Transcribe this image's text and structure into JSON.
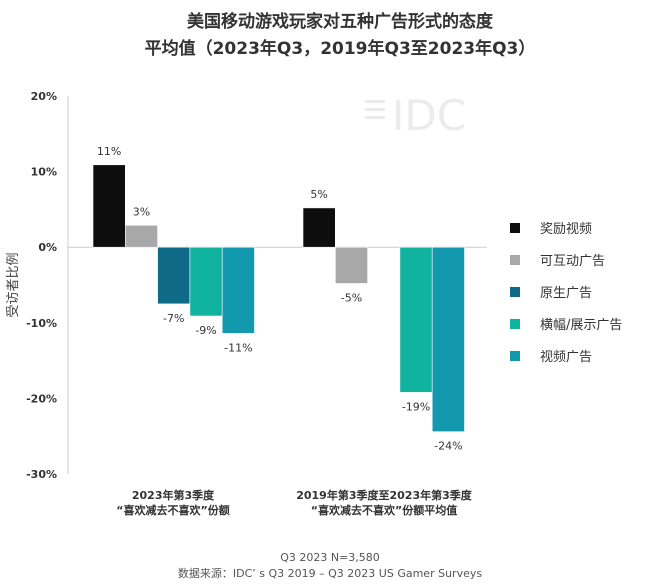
{
  "chart_data": {
    "type": "bar",
    "title": "美国移动游戏玩家对五种广告形式的态度",
    "subtitle": "平均值（2023年Q3，2019年Q3至2023年Q3）",
    "ylabel": "受访者比例",
    "ylim": [
      -30,
      20
    ],
    "yticks": [
      "20%",
      "10%",
      "0%",
      "-10%",
      "-20%",
      "-30%"
    ],
    "ytick_values": [
      20,
      10,
      0,
      -10,
      -20,
      -30
    ],
    "grid": false,
    "legend_position": "right",
    "categories": [
      [
        "2023年第3季度",
        "“喜欢减去不喜欢”份额"
      ],
      [
        "2019年第3季度至2023年第3季度",
        "“喜欢减去不喜欢”份额平均值"
      ]
    ],
    "series": [
      {
        "name": "奖励视频",
        "color": "#0d0d0d",
        "values": [
          10.9,
          5.2
        ],
        "labels": [
          "11%",
          "5%"
        ]
      },
      {
        "name": "可互动广告",
        "color": "#a8a8a8",
        "values": [
          2.9,
          -4.8
        ],
        "labels": [
          "3%",
          "-5%"
        ]
      },
      {
        "name": "原生广告",
        "color": "#0f6a88",
        "values": [
          -7.5,
          null
        ],
        "labels": [
          "-7%",
          null
        ]
      },
      {
        "name": "横幅/展示广告",
        "color": "#10b39f",
        "values": [
          -9.1,
          -19.2
        ],
        "labels": [
          "-9%",
          "-19%"
        ]
      },
      {
        "name": "视频广告",
        "color": "#1299ad",
        "values": [
          -11.4,
          -24.4
        ],
        "labels": [
          "-11%",
          "-24%"
        ]
      }
    ],
    "footnote": "Q3 2023 N=3,580",
    "source": "数据来源：IDC’ s Q3 2019 – Q3 2023 US Gamer Surveys",
    "watermark": "IDC"
  }
}
